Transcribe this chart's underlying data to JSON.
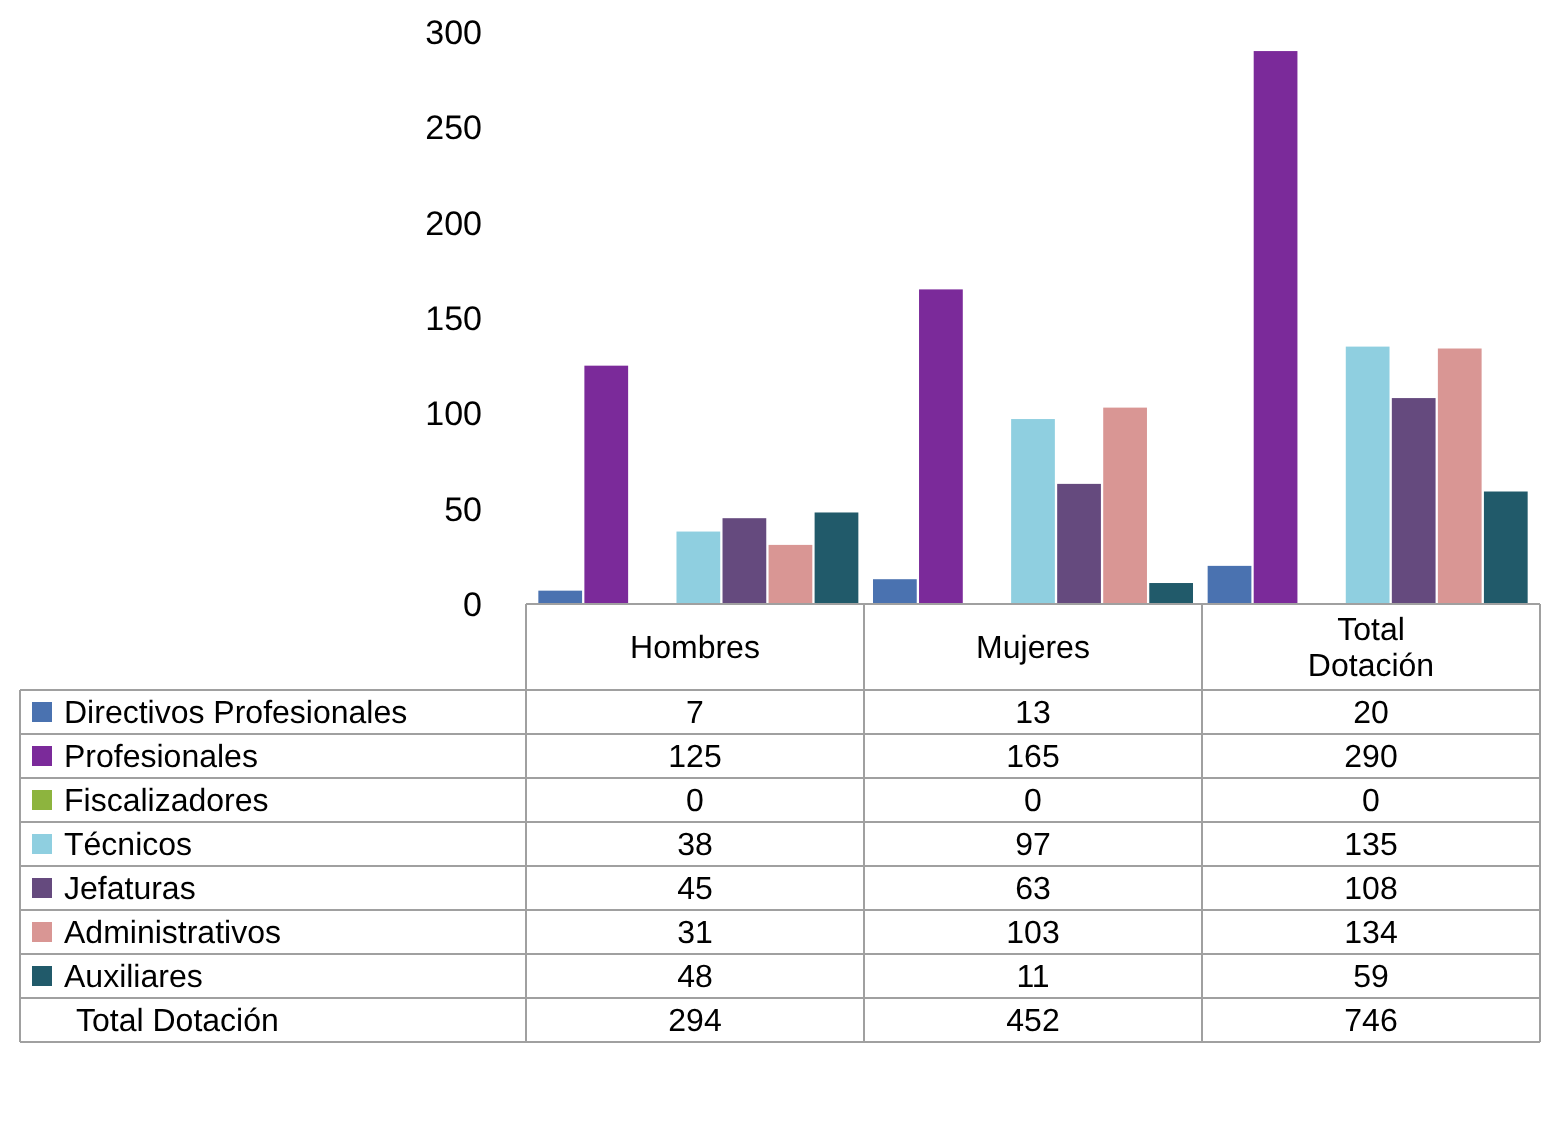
{
  "chart_data": {
    "type": "bar",
    "categories": [
      "Hombres",
      "Mujeres",
      "Total Dotación"
    ],
    "series": [
      {
        "name": "Directivos Profesionales",
        "color": "#4a72b0",
        "values": [
          7,
          13,
          20
        ]
      },
      {
        "name": "Profesionales",
        "color": "#7b2a9a",
        "values": [
          125,
          165,
          290
        ]
      },
      {
        "name": "Fiscalizadores",
        "color": "#8db43e",
        "values": [
          0,
          0,
          0
        ]
      },
      {
        "name": "Técnicos",
        "color": "#8fcfe0",
        "values": [
          38,
          97,
          135
        ]
      },
      {
        "name": "Jefaturas",
        "color": "#654a7e",
        "values": [
          45,
          63,
          108
        ]
      },
      {
        "name": "Administrativos",
        "color": "#d99694",
        "values": [
          31,
          103,
          134
        ]
      },
      {
        "name": "Auxiliares",
        "color": "#215a6a",
        "values": [
          48,
          11,
          59
        ]
      }
    ],
    "ylim": [
      0,
      300
    ],
    "yticks": [
      0,
      50,
      100,
      150,
      200,
      250,
      300
    ],
    "grid": false,
    "legend": "bottom",
    "data_labels": true,
    "annotations": [
      "Total Dotación",
      "294",
      "452",
      "746"
    ]
  }
}
